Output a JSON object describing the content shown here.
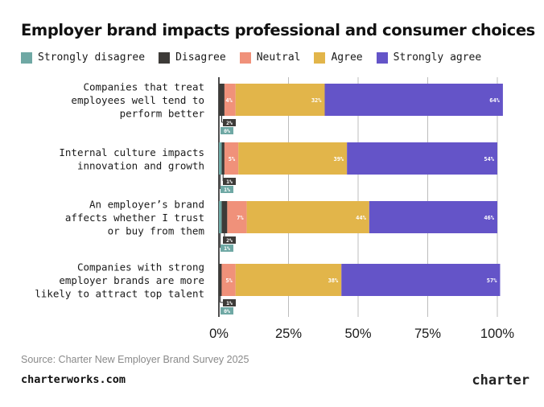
{
  "chart_data": {
    "type": "bar",
    "orientation": "horizontal",
    "stacked": true,
    "title": "Employer brand impacts professional and consumer choices",
    "categories": [
      "Companies that treat employees well tend to perform better",
      "Internal culture impacts innovation and growth",
      "An employer’s brand affects whether I trust or buy from them",
      "Companies with strong employer brands are more likely to attract top talent"
    ],
    "category_lines": [
      [
        "Companies that treat",
        "employees well tend to",
        "perform better"
      ],
      [
        "Internal culture impacts",
        "innovation and growth"
      ],
      [
        "An employer’s brand",
        "affects whether I trust",
        "or buy from them"
      ],
      [
        "Companies with strong",
        "employer brands are more",
        "likely to attract top talent"
      ]
    ],
    "series": [
      {
        "name": "Strongly disagree",
        "color": "#6fa8a4",
        "values": [
          0,
          1,
          1,
          0
        ],
        "labels": [
          "0%",
          "1%",
          "1%",
          "0%"
        ]
      },
      {
        "name": "Disagree",
        "color": "#3d3b38",
        "values": [
          2,
          1,
          2,
          1
        ],
        "labels": [
          "2%",
          "1%",
          "2%",
          "1%"
        ]
      },
      {
        "name": "Neutral",
        "color": "#f0917a",
        "values": [
          4,
          5,
          7,
          5
        ],
        "labels": [
          "4%",
          "5%",
          "7%",
          "5%"
        ]
      },
      {
        "name": "Agree",
        "color": "#e2b54a",
        "values": [
          32,
          39,
          44,
          38
        ],
        "labels": [
          "32%",
          "39%",
          "44%",
          "38%"
        ]
      },
      {
        "name": "Strongly agree",
        "color": "#6454c8",
        "values": [
          64,
          54,
          46,
          57
        ],
        "labels": [
          "64%",
          "54%",
          "46%",
          "57%"
        ]
      }
    ],
    "xlim": [
      0,
      100
    ],
    "xticks": [
      0,
      25,
      50,
      75,
      100
    ],
    "xtick_labels": [
      "0%",
      "25%",
      "50%",
      "75%",
      "100%"
    ],
    "legend_position": "top"
  },
  "footer": {
    "source": "Source: Charter New Employer Brand Survey 2025",
    "site": "charterworks.com",
    "brand": "charter"
  }
}
